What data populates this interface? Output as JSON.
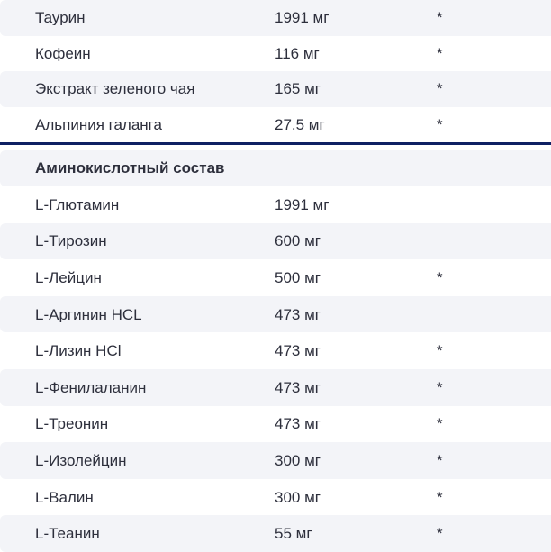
{
  "colors": {
    "stripe_bg": "#f3f4f8",
    "row_bg": "#ffffff",
    "text": "#2d2f3c",
    "divider": "#0e2063"
  },
  "units_note_symbol": "*",
  "table": {
    "sections": [
      {
        "header": null,
        "rows": [
          {
            "name": "Таурин",
            "value": "1991 мг",
            "note": "*"
          },
          {
            "name": "Кофеин",
            "value": "116 мг",
            "note": "*"
          },
          {
            "name": "Экстракт зеленого чая",
            "value": "165 мг",
            "note": "*"
          },
          {
            "name": "Альпиния галанга",
            "value": "27.5 мг",
            "note": "*"
          }
        ]
      },
      {
        "header": "Аминокислотный состав",
        "rows": [
          {
            "name": "L-Глютамин",
            "value": "1991 мг",
            "note": ""
          },
          {
            "name": "L-Тирозин",
            "value": "600 мг",
            "note": ""
          },
          {
            "name": "L-Лейцин",
            "value": "500 мг",
            "note": "*"
          },
          {
            "name": "L-Аргинин HCL",
            "value": "473 мг",
            "note": ""
          },
          {
            "name": "L-Лизин HCl",
            "value": "473 мг",
            "note": "*"
          },
          {
            "name": "L-Фенилаланин",
            "value": "473 мг",
            "note": "*"
          },
          {
            "name": "L-Треонин",
            "value": "473 мг",
            "note": "*"
          },
          {
            "name": "L-Изолейцин",
            "value": "300 мг",
            "note": "*"
          },
          {
            "name": "L-Валин",
            "value": "300 мг",
            "note": "*"
          },
          {
            "name": "L-Теанин",
            "value": "55 мг",
            "note": "*"
          }
        ]
      }
    ]
  }
}
